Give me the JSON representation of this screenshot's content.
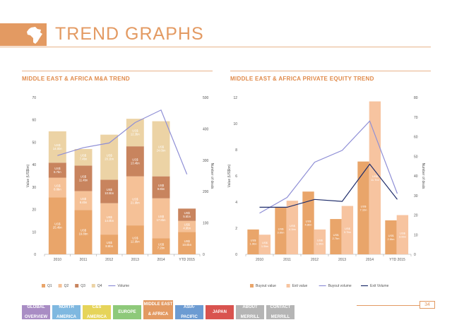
{
  "page": {
    "title": "TREND GRAPHS",
    "page_number": "34"
  },
  "colors": {
    "accent": "#e39a62"
  },
  "nav": [
    {
      "label1": "GLOBAL",
      "label2": "OVERVIEW",
      "color": "#a98dc4",
      "w": 40
    },
    {
      "label1": "NORTH",
      "label2": "AMERICA",
      "color": "#7fb8e0",
      "w": 40
    },
    {
      "label1": "C&S",
      "label2": "AMERICA",
      "color": "#e6d45a",
      "w": 40
    },
    {
      "label1": "EUROPE",
      "label2": "",
      "color": "#8ec97a",
      "w": 40
    },
    {
      "label1": "MIDDLE EAST",
      "label2": "& AFRICA",
      "color": "#e39a62",
      "w": 42,
      "active": true
    },
    {
      "label1": "ASIA-",
      "label2": "PACIFIC",
      "color": "#6c9bd2",
      "w": 40
    },
    {
      "label1": "JAPAN",
      "label2": "",
      "color": "#d9534f",
      "w": 40
    },
    {
      "label1": "ABOUT",
      "label2": "MERRILL",
      "color": "#b5b5b5",
      "w": 40
    },
    {
      "label1": "CONTACT",
      "label2": "MERRILL",
      "color": "#b5b5b5",
      "w": 40
    }
  ],
  "chart_data": [
    {
      "type": "bar",
      "title": "MIDDLE EAST & AFRICA M&A TREND",
      "categories": [
        "2010",
        "2011",
        "2012",
        "2013",
        "2014",
        "YTD 2015"
      ],
      "ylabel": "Value (US$bn)",
      "y2label": "Number of deals",
      "ylim": [
        0,
        70
      ],
      "y2lim": [
        0,
        500
      ],
      "yticks": [
        0,
        10,
        20,
        30,
        40,
        50,
        60,
        70
      ],
      "y2ticks": [
        0,
        100,
        200,
        300,
        400,
        500
      ],
      "stacked": true,
      "series": [
        {
          "name": "Q1",
          "color": "#e9a56a",
          "values": [
            25.4,
            19.8,
            8.8,
            12.9,
            7.2,
            10.0
          ],
          "labels": [
            "US$ 25.4bn",
            "US$ 19.8bn",
            "US$ 8.8bn",
            "US$ 12.9bn",
            "US$ 7.2bn",
            "US$ 10.0bn"
          ]
        },
        {
          "name": "Q2",
          "color": "#f5c197",
          "values": [
            8.8,
            8.4,
            14.0,
            21.9,
            17.8,
            4.9
          ],
          "labels": [
            "US$ 8.8bn",
            "US$ 8.4bn",
            "US$ 14.0bn",
            "US$ 21.9bn",
            "US$ 17.8bn",
            "US$ 4.9bn"
          ]
        },
        {
          "name": "Q3",
          "color": "#c8845e",
          "values": [
            6.7,
            11.4,
            10.5,
            13.4,
            9.8,
            5.5
          ],
          "labels": [
            "US$ 6.7bn",
            "US$ 11.4bn",
            "US$ 10.5bn",
            "US$ 13.4bn",
            "US$ 9.8bn",
            "US$ 5.5bn"
          ]
        },
        {
          "name": "Q4",
          "color": "#ecd3a5",
          "values": [
            14.0,
            7.4,
            20.1,
            12.3,
            24.6,
            null
          ],
          "labels": [
            "US$ 14.0bn",
            "US$ 7.4bn",
            "US$ 20.1bn",
            "US$ 12.3bn",
            "US$ 24.6bn",
            ""
          ]
        }
      ],
      "lines": [
        {
          "name": "Volume",
          "color": "#8f8fd6",
          "values": [
            315,
            340,
            355,
            420,
            460,
            255
          ]
        }
      ]
    },
    {
      "type": "bar",
      "title": "MIDDLE EAST & AFRICA PRIVATE EQUITY TREND",
      "categories": [
        "2010",
        "2011",
        "2012",
        "2013",
        "2014",
        "YTD 2015"
      ],
      "ylabel": "Value (US$bn)",
      "y2label": "Number of deals",
      "ylim": [
        0,
        12
      ],
      "y2lim": [
        0,
        80
      ],
      "yticks": [
        0,
        2,
        4,
        6,
        8,
        10,
        12
      ],
      "y2ticks": [
        0,
        10,
        20,
        30,
        40,
        50,
        60,
        70,
        80
      ],
      "stacked": false,
      "series": [
        {
          "name": "Buyout value",
          "color": "#e9a56a",
          "values": [
            1.9,
            3.6,
            4.8,
            2.7,
            7.1,
            2.6
          ],
          "labels": [
            "US$ 1.9bn",
            "US$ 3.6bn",
            "US$ 4.8bn",
            "US$ 2.7bn",
            "US$ 7.1bn",
            "US$ 2.6bn"
          ]
        },
        {
          "name": "Exit value",
          "color": "#f7c4a0",
          "values": [
            1.5,
            4.1,
            1.9,
            3.7,
            11.7,
            3.0
          ],
          "labels": [
            "US$ 1.5bn",
            "US$ 4.1bn",
            "US$ 1.9bn",
            "US$ 3.7bn",
            "US$ 11.7bn",
            "US$ 3.0bn"
          ]
        }
      ],
      "lines": [
        {
          "name": "Buyout volume",
          "color": "#8f8fd6",
          "values": [
            21,
            29,
            47,
            53,
            68,
            31
          ]
        },
        {
          "name": "Exit Volume",
          "color": "#1f2d6b",
          "values": [
            24,
            24,
            28,
            27,
            46,
            28
          ]
        }
      ]
    }
  ]
}
